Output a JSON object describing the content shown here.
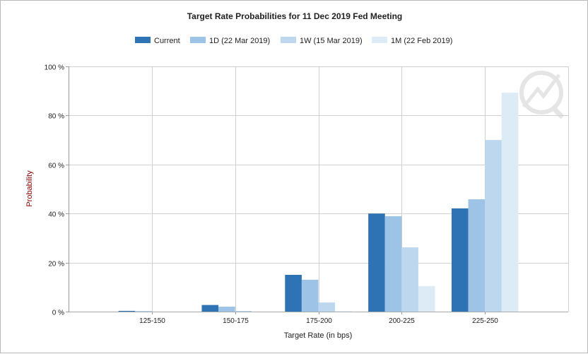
{
  "chart_data": {
    "type": "bar",
    "title": "Target Rate Probabilities for 11 Dec 2019 Fed Meeting",
    "xlabel": "Target Rate (in bps)",
    "ylabel": "Probability",
    "ylim": [
      0,
      100
    ],
    "yticks": [
      "0 %",
      "20 %",
      "40 %",
      "60 %",
      "80 %",
      "100 %"
    ],
    "grid": true,
    "legend_position": "top",
    "categories": [
      "125-150",
      "150-175",
      "175-200",
      "200-225",
      "225-250"
    ],
    "series": [
      {
        "name": "Current",
        "color": "#2e74b5",
        "values": [
          0.3,
          2.7,
          15.0,
          40.0,
          42.1
        ]
      },
      {
        "name": "1D (22 Mar 2019)",
        "color": "#9dc3e6",
        "values": [
          0.2,
          2.0,
          13.0,
          38.9,
          45.8
        ]
      },
      {
        "name": "1W (15 Mar 2019)",
        "color": "#bdd7ee",
        "values": [
          0.0,
          0.3,
          3.7,
          26.2,
          70.0
        ]
      },
      {
        "name": "1M (22 Feb 2019)",
        "color": "#ddebf7",
        "values": [
          0.0,
          0.0,
          0.2,
          10.4,
          89.3
        ]
      }
    ]
  }
}
